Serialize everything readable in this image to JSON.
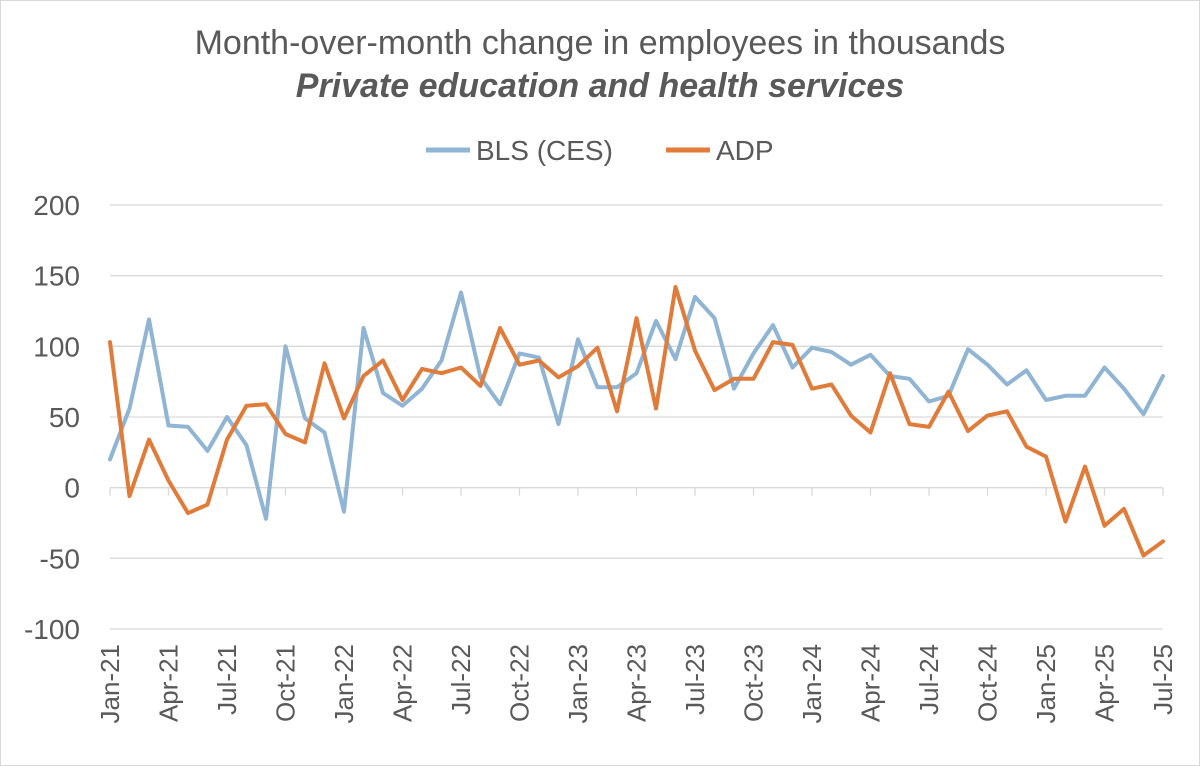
{
  "chart_data": {
    "type": "line",
    "title": "Month-over-month change in employees in thousands",
    "subtitle": "Private education and health services",
    "xlabel": "",
    "ylabel": "",
    "ylim": [
      -100,
      200
    ],
    "yticks": [
      -100,
      -50,
      0,
      50,
      100,
      150,
      200
    ],
    "grid": true,
    "legend_position": "top",
    "x_tick_labels": [
      "Jan-21",
      "Apr-21",
      "Jul-21",
      "Oct-21",
      "Jan-22",
      "Apr-22",
      "Jul-22",
      "Oct-22",
      "Jan-23",
      "Apr-23",
      "Jul-23",
      "Oct-23",
      "Jan-24",
      "Apr-24",
      "Jul-24",
      "Oct-24",
      "Jan-25",
      "Apr-25",
      "Jul-25"
    ],
    "x": [
      "Jan-21",
      "Feb-21",
      "Mar-21",
      "Apr-21",
      "May-21",
      "Jun-21",
      "Jul-21",
      "Aug-21",
      "Sep-21",
      "Oct-21",
      "Nov-21",
      "Dec-21",
      "Jan-22",
      "Feb-22",
      "Mar-22",
      "Apr-22",
      "May-22",
      "Jun-22",
      "Jul-22",
      "Aug-22",
      "Sep-22",
      "Oct-22",
      "Nov-22",
      "Dec-22",
      "Jan-23",
      "Feb-23",
      "Mar-23",
      "Apr-23",
      "May-23",
      "Jun-23",
      "Jul-23",
      "Aug-23",
      "Sep-23",
      "Oct-23",
      "Nov-23",
      "Dec-23",
      "Jan-24",
      "Feb-24",
      "Mar-24",
      "Apr-24",
      "May-24",
      "Jun-24",
      "Jul-24",
      "Aug-24",
      "Sep-24",
      "Oct-24",
      "Nov-24",
      "Dec-24",
      "Jan-25",
      "Feb-25",
      "Mar-25",
      "Apr-25",
      "May-25",
      "Jun-25",
      "Jul-25"
    ],
    "series": [
      {
        "name": "BLS (CES)",
        "color": "#8fb4d4",
        "values": [
          20,
          56,
          119,
          44,
          43,
          26,
          50,
          30,
          -22,
          100,
          49,
          39,
          -17,
          113,
          67,
          58,
          70,
          90,
          138,
          78,
          59,
          95,
          92,
          45,
          105,
          71,
          71,
          81,
          118,
          91,
          135,
          120,
          70,
          95,
          115,
          85,
          99,
          96,
          87,
          94,
          79,
          77,
          61,
          65,
          98,
          87,
          73,
          83,
          62,
          65,
          65,
          85,
          70,
          52,
          79
        ]
      },
      {
        "name": "ADP",
        "color": "#e07b39",
        "values": [
          103,
          -6,
          34,
          5,
          -18,
          -12,
          34,
          58,
          59,
          38,
          32,
          88,
          49,
          79,
          90,
          62,
          84,
          81,
          85,
          72,
          113,
          87,
          90,
          78,
          86,
          99,
          54,
          120,
          56,
          142,
          97,
          69,
          77,
          77,
          103,
          101,
          70,
          73,
          51,
          39,
          81,
          45,
          43,
          68,
          40,
          51,
          54,
          29,
          22,
          -24,
          15,
          -27,
          -15,
          -48,
          -38
        ]
      }
    ]
  }
}
